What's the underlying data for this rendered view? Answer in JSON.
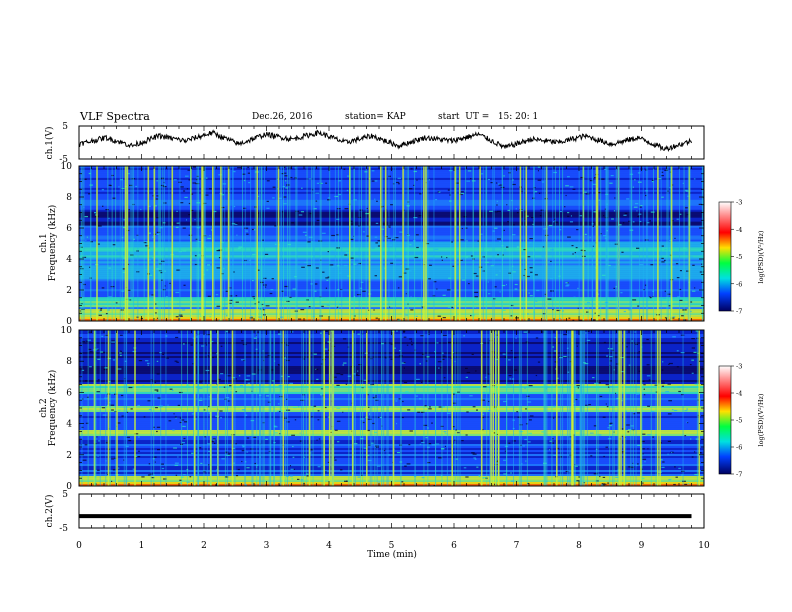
{
  "header": {
    "title": "VLF Spectra",
    "date": "Dec.26, 2016",
    "station": "station= KAP",
    "start": "start  UT =   15: 20: 1"
  },
  "chart_data": [
    {
      "type": "line",
      "panel": "ch1-waveform",
      "ylabel": "ch.1(V)",
      "ylim": [
        -5,
        5
      ],
      "yticks": [
        5,
        -5
      ],
      "x_range_min": [
        0,
        9.8
      ],
      "approx_values": [
        -0.5,
        1.5,
        -1.0,
        2.0,
        0.5,
        3.0,
        -0.5,
        2.5,
        1.0,
        3.0,
        0.0,
        2.0,
        -1.0,
        1.5,
        0.5,
        2.5,
        -1.5,
        1.0,
        0.0,
        2.0,
        -0.5,
        1.5,
        -2.0,
        0.5
      ]
    },
    {
      "type": "heatmap",
      "panel": "ch1-spectrogram",
      "ylabel": "ch.1\nFrequency (kHz)",
      "ylim": [
        0,
        10
      ],
      "yticks": [
        0,
        2,
        4,
        6,
        8,
        10
      ],
      "colorbar": {
        "label": "log(PSD)(V²/Hz)",
        "range": [
          -7,
          -3
        ],
        "ticks": [
          "-3",
          "-4",
          "-5",
          "-6",
          "-7"
        ]
      }
    },
    {
      "type": "heatmap",
      "panel": "ch2-spectrogram",
      "ylabel": "ch.2\nFrequency (kHz)",
      "ylim": [
        0,
        10
      ],
      "yticks": [
        0,
        2,
        4,
        6,
        8,
        10
      ],
      "colorbar": {
        "label": "log(PSD)(V²/Hz)",
        "range": [
          -7,
          -3
        ],
        "ticks": [
          "-3",
          "-4",
          "-5",
          "-6",
          "-7"
        ]
      }
    },
    {
      "type": "line",
      "panel": "ch2-waveform",
      "ylabel": "ch.2(V)",
      "ylim": [
        -5,
        5
      ],
      "yticks": [
        5,
        -5
      ],
      "constant_value": -1.5
    }
  ],
  "xaxis": {
    "label": "Time  (min)",
    "ticks": [
      "0",
      "1",
      "2",
      "3",
      "4",
      "5",
      "6",
      "7",
      "8",
      "9",
      "10"
    ],
    "range": [
      0,
      10
    ]
  },
  "colors": {
    "background": "#ffffff",
    "axis": "#000000",
    "spectrum_dark": "#06003a",
    "spectrum_mid": "#1a50ff",
    "spectrum_high": "#2fe3c0",
    "spectrum_peak": "#c8f23a"
  }
}
